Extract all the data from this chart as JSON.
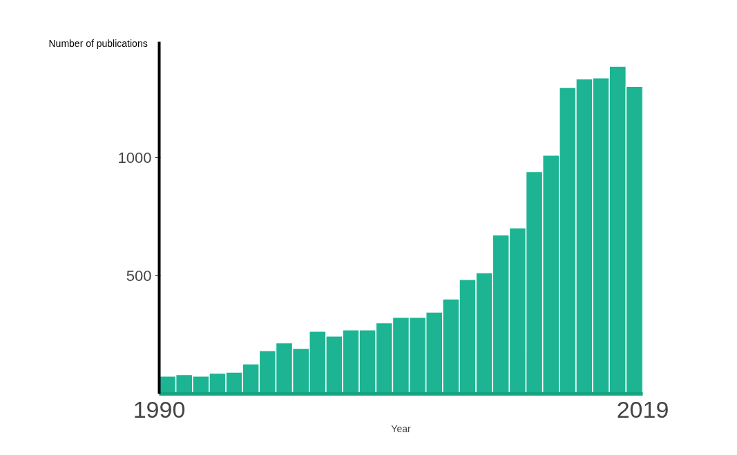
{
  "chart_data": {
    "type": "histogram",
    "xlabel": "Year",
    "ylabel": "Number of publications",
    "bins": [
      1990,
      1991,
      1992,
      1993,
      1994,
      1995,
      1996,
      1997,
      1998,
      1999,
      2000,
      2001,
      2002,
      2003,
      2004,
      2005,
      2006,
      2007,
      2008,
      2009,
      2010,
      2011,
      2012,
      2013,
      2014,
      2015,
      2016,
      2017,
      2018,
      2019
    ],
    "values": [
      75,
      82,
      75,
      88,
      92,
      127,
      183,
      216,
      193,
      265,
      245,
      271,
      271,
      301,
      324,
      324,
      346,
      402,
      484,
      513,
      673,
      703,
      941,
      1010,
      1297,
      1333,
      1337,
      1386,
      1301
    ],
    "color": "#1cb492",
    "xlim": [
      1990,
      2019
    ],
    "xticks": [
      1990,
      2019
    ],
    "ylim": [
      0,
      1490
    ],
    "yticks": [
      500,
      1000
    ],
    "grid": false
  }
}
